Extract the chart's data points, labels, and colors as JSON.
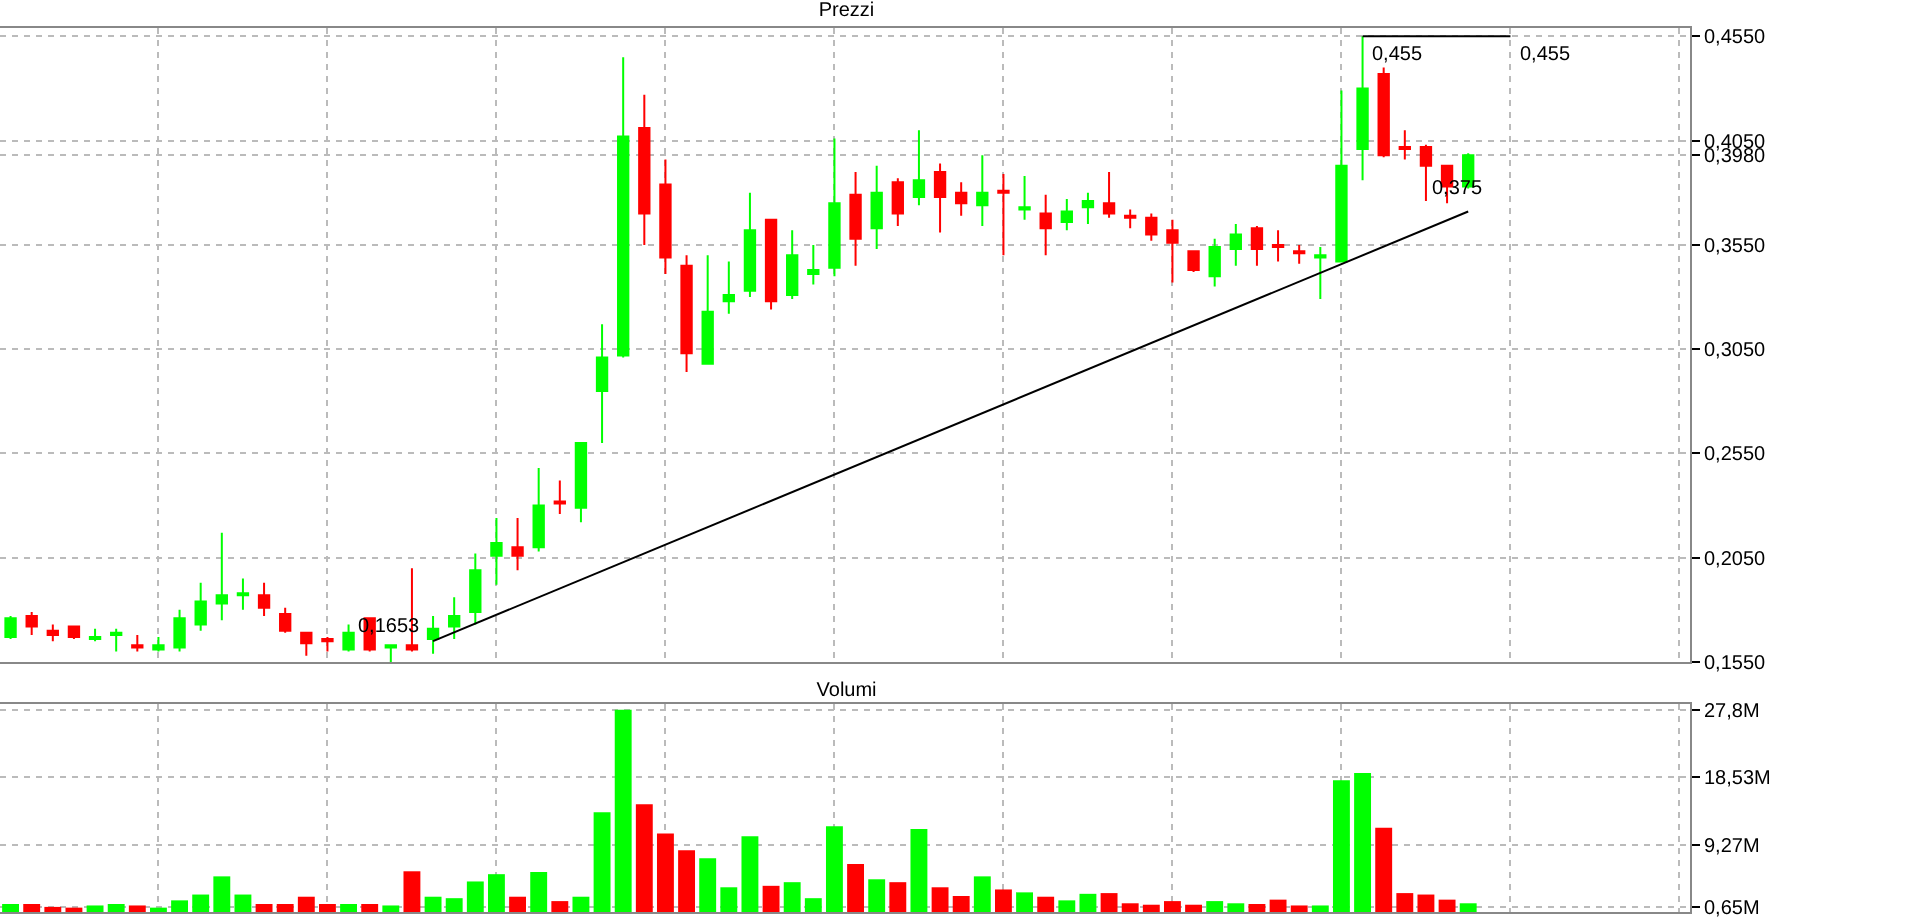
{
  "chart_data": [
    {
      "type": "candlestick",
      "title": "Prezzi",
      "categories": [
        null,
        null,
        null,
        null,
        null,
        null,
        null,
        null,
        null,
        null,
        null,
        null,
        null,
        null,
        null,
        null,
        null,
        null,
        null,
        null,
        null,
        null,
        null,
        null,
        null,
        null,
        null,
        null,
        null,
        null,
        null,
        null,
        null,
        null,
        null,
        null,
        null,
        null,
        null,
        null,
        null,
        null,
        null,
        null,
        null,
        null,
        null,
        null,
        null,
        null,
        null,
        null,
        null,
        null,
        null,
        null,
        null,
        null,
        null,
        null,
        null,
        null,
        null,
        null,
        null,
        null,
        null,
        null,
        null,
        null,
        null,
        null,
        null,
        null,
        null,
        null,
        null,
        null,
        null,
        null
      ],
      "ohlc": [
        [
          0.167,
          0.177,
          0.166,
          0.176
        ],
        [
          0.177,
          0.179,
          0.168,
          0.172
        ],
        [
          0.17,
          0.173,
          0.165,
          0.168
        ],
        [
          0.172,
          0.172,
          0.166,
          0.167
        ],
        [
          0.166,
          0.171,
          0.165,
          0.167
        ],
        [
          0.168,
          0.171,
          0.16,
          0.169
        ],
        [
          0.163,
          0.168,
          0.16,
          0.162
        ],
        [
          0.161,
          0.167,
          0.16,
          0.163
        ],
        [
          0.162,
          0.18,
          0.16,
          0.176
        ],
        [
          0.173,
          0.193,
          0.17,
          0.184
        ],
        [
          0.183,
          0.217,
          0.175,
          0.187
        ],
        [
          0.187,
          0.195,
          0.18,
          0.188
        ],
        [
          0.187,
          0.193,
          0.177,
          0.181
        ],
        [
          0.178,
          0.181,
          0.169,
          0.17
        ],
        [
          0.169,
          0.169,
          0.158,
          0.164
        ],
        [
          0.166,
          0.167,
          0.16,
          0.165
        ],
        [
          0.161,
          0.173,
          0.16,
          0.169
        ],
        [
          0.176,
          0.176,
          0.16,
          0.161
        ],
        [
          0.162,
          0.163,
          0.155,
          0.163
        ],
        [
          0.163,
          0.2,
          0.16,
          0.161
        ],
        [
          0.166,
          0.177,
          0.159,
          0.171
        ],
        [
          0.172,
          0.186,
          0.166,
          0.177
        ],
        [
          0.179,
          0.207,
          0.173,
          0.199
        ],
        [
          0.206,
          0.224,
          0.192,
          0.212
        ],
        [
          0.21,
          0.224,
          0.199,
          0.206
        ],
        [
          0.21,
          0.248,
          0.208,
          0.23
        ],
        [
          0.232,
          0.242,
          0.226,
          0.231
        ],
        [
          0.229,
          0.26,
          0.222,
          0.26
        ],
        [
          0.285,
          0.317,
          0.26,
          0.301
        ],
        [
          0.302,
          0.445,
          0.301,
          0.407
        ],
        [
          0.411,
          0.427,
          0.355,
          0.37
        ],
        [
          0.384,
          0.396,
          0.341,
          0.349
        ],
        [
          0.345,
          0.35,
          0.294,
          0.303
        ],
        [
          0.298,
          0.35,
          0.298,
          0.323
        ],
        [
          0.328,
          0.347,
          0.322,
          0.331
        ],
        [
          0.333,
          0.38,
          0.33,
          0.362
        ],
        [
          0.367,
          0.367,
          0.324,
          0.328
        ],
        [
          0.331,
          0.362,
          0.329,
          0.35
        ],
        [
          0.341,
          0.355,
          0.336,
          0.343
        ],
        [
          0.344,
          0.406,
          0.34,
          0.375
        ],
        [
          0.379,
          0.39,
          0.345,
          0.358
        ],
        [
          0.363,
          0.393,
          0.353,
          0.38
        ],
        [
          0.385,
          0.387,
          0.364,
          0.37
        ],
        [
          0.378,
          0.41,
          0.374,
          0.386
        ],
        [
          0.39,
          0.394,
          0.361,
          0.378
        ],
        [
          0.38,
          0.385,
          0.369,
          0.375
        ],
        [
          0.374,
          0.398,
          0.364,
          0.38
        ],
        [
          0.381,
          0.389,
          0.35,
          0.38
        ],
        [
          0.372,
          0.388,
          0.367,
          0.373
        ],
        [
          0.37,
          0.379,
          0.35,
          0.363
        ],
        [
          0.366,
          0.377,
          0.362,
          0.371
        ],
        [
          0.373,
          0.38,
          0.365,
          0.376
        ],
        [
          0.375,
          0.39,
          0.368,
          0.37
        ],
        [
          0.369,
          0.372,
          0.363,
          0.368
        ],
        [
          0.368,
          0.37,
          0.357,
          0.36
        ],
        [
          0.362,
          0.367,
          0.337,
          0.356
        ],
        [
          0.352,
          0.352,
          0.342,
          0.343
        ],
        [
          0.34,
          0.358,
          0.335,
          0.354
        ],
        [
          0.353,
          0.365,
          0.345,
          0.36
        ],
        [
          0.363,
          0.364,
          0.345,
          0.353
        ],
        [
          0.355,
          0.362,
          0.347,
          0.354
        ],
        [
          0.352,
          0.355,
          0.346,
          0.351
        ],
        [
          0.349,
          0.354,
          0.329,
          0.35
        ],
        [
          0.347,
          0.429,
          0.347,
          0.393
        ],
        [
          0.401,
          0.455,
          0.386,
          0.43
        ],
        [
          0.437,
          0.44,
          0.397,
          0.398
        ],
        [
          0.402,
          0.41,
          0.396,
          0.401
        ],
        [
          0.402,
          0.403,
          0.376,
          0.393
        ],
        [
          0.393,
          0.393,
          0.375,
          0.383
        ],
        [
          0.383,
          0.399,
          0.382,
          0.398
        ],
        null,
        null,
        null,
        null,
        null,
        null,
        null,
        null,
        null,
        null
      ],
      "colors": [
        "#00ff00",
        "#ff0000",
        "#ff0000",
        "#ff0000",
        "#00ff00",
        "#00ff00",
        "#ff0000",
        "#00ff00",
        "#00ff00",
        "#00ff00",
        "#00ff00",
        "#00ff00",
        "#ff0000",
        "#ff0000",
        "#ff0000",
        "#ff0000",
        "#00ff00",
        "#ff0000",
        "#00ff00",
        "#ff0000",
        "#00ff00",
        "#00ff00",
        "#00ff00",
        "#00ff00",
        "#ff0000",
        "#00ff00",
        "#ff0000",
        "#00ff00",
        "#00ff00",
        "#00ff00",
        "#ff0000",
        "#ff0000",
        "#ff0000",
        "#00ff00",
        "#00ff00",
        "#00ff00",
        "#ff0000",
        "#00ff00",
        "#00ff00",
        "#00ff00",
        "#ff0000",
        "#00ff00",
        "#ff0000",
        "#00ff00",
        "#ff0000",
        "#ff0000",
        "#00ff00",
        "#ff0000",
        "#00ff00",
        "#ff0000",
        "#00ff00",
        "#00ff00",
        "#ff0000",
        "#ff0000",
        "#ff0000",
        "#ff0000",
        "#ff0000",
        "#00ff00",
        "#00ff00",
        "#ff0000",
        "#ff0000",
        "#ff0000",
        "#00ff00",
        "#00ff00",
        "#00ff00",
        "#ff0000",
        "#ff0000",
        "#ff0000",
        "#ff0000",
        "#00ff00",
        null,
        null,
        null,
        null,
        null,
        null,
        null,
        null,
        null,
        null
      ],
      "series": [
        {
          "type": "line",
          "color": "#000000",
          "values": [
            null,
            null,
            null,
            null,
            null,
            null,
            null,
            null,
            null,
            null,
            null,
            null,
            null,
            null,
            null,
            null,
            null,
            null,
            null,
            null,
            0.165,
            null,
            null,
            null,
            null,
            null,
            null,
            null,
            null,
            null,
            null,
            null,
            null,
            null,
            null,
            null,
            null,
            null,
            null,
            null,
            null,
            null,
            null,
            null,
            null,
            null,
            null,
            null,
            null,
            null,
            null,
            null,
            null,
            null,
            null,
            null,
            null,
            null,
            null,
            null,
            null,
            null,
            null,
            null,
            null,
            null,
            null,
            null,
            null,
            0.371,
            null,
            null,
            null,
            null,
            null,
            null,
            null,
            null,
            null,
            null
          ]
        }
      ],
      "ylim": [
        0.155,
        0.459
      ],
      "yticks": [
        {
          "value": 0.455,
          "label": "0,4550"
        },
        {
          "value": 0.405,
          "label": "0,4050"
        },
        {
          "value": 0.398,
          "label": "0,3980"
        },
        {
          "value": 0.355,
          "label": "0,3550"
        },
        {
          "value": 0.305,
          "label": "0,3050"
        },
        {
          "value": 0.255,
          "label": "0,2550"
        },
        {
          "value": 0.205,
          "label": "0,2050"
        },
        {
          "value": 0.155,
          "label": "0,1550"
        }
      ],
      "grid": true,
      "tick_labels": "y",
      "ref_lines": [
        {
          "axis": "y",
          "value": 0.455,
          "label": "0,455",
          "color": "#000000"
        }
      ],
      "annotations": [
        {
          "text": "0,455",
          "y": 0.455
        },
        "0,1653",
        "0,375"
      ]
    },
    {
      "type": "bar",
      "title": "Volumi",
      "categories": [
        null,
        null,
        null,
        null,
        null,
        null,
        null,
        null,
        null,
        null,
        null,
        null,
        null,
        null,
        null,
        null,
        null,
        null,
        null,
        null,
        null,
        null,
        null,
        null,
        null,
        null,
        null,
        null,
        null,
        null,
        null,
        null,
        null,
        null,
        null,
        null,
        null,
        null,
        null,
        null,
        null,
        null,
        null,
        null,
        null,
        null,
        null,
        null,
        null,
        null,
        null,
        null,
        null,
        null,
        null,
        null,
        null,
        null,
        null,
        null,
        null,
        null,
        null,
        null,
        null,
        null,
        null,
        null,
        null,
        null,
        null,
        null,
        null,
        null,
        null,
        null,
        null,
        null,
        null,
        null
      ],
      "values": [
        1.1,
        1.1,
        0.7,
        0.6,
        0.9,
        1.1,
        0.9,
        0.6,
        1.6,
        2.4,
        4.9,
        2.4,
        1.1,
        1.1,
        2.1,
        1.1,
        1.1,
        1.1,
        0.9,
        5.6,
        2.1,
        1.9,
        4.2,
        5.2,
        2.1,
        5.5,
        1.5,
        2.1,
        13.7,
        27.8,
        14.8,
        10.8,
        8.5,
        7.4,
        3.4,
        10.4,
        3.6,
        4.1,
        1.9,
        11.8,
        6.6,
        4.5,
        4.1,
        11.4,
        3.4,
        2.2,
        4.9,
        3.1,
        2.7,
        2.1,
        1.6,
        2.5,
        2.6,
        1.2,
        1.0,
        1.5,
        1.0,
        1.5,
        1.2,
        1.1,
        1.7,
        0.9,
        0.9,
        18.1,
        19.1,
        11.6,
        2.6,
        2.4,
        1.7,
        1.2,
        null,
        null,
        null,
        null,
        null,
        null,
        null,
        null,
        null,
        null
      ],
      "colors": [
        "#00ff00",
        "#ff0000",
        "#ff0000",
        "#ff0000",
        "#00ff00",
        "#00ff00",
        "#ff0000",
        "#00ff00",
        "#00ff00",
        "#00ff00",
        "#00ff00",
        "#00ff00",
        "#ff0000",
        "#ff0000",
        "#ff0000",
        "#ff0000",
        "#00ff00",
        "#ff0000",
        "#00ff00",
        "#ff0000",
        "#00ff00",
        "#00ff00",
        "#00ff00",
        "#00ff00",
        "#ff0000",
        "#00ff00",
        "#ff0000",
        "#00ff00",
        "#00ff00",
        "#00ff00",
        "#ff0000",
        "#ff0000",
        "#ff0000",
        "#00ff00",
        "#00ff00",
        "#00ff00",
        "#ff0000",
        "#00ff00",
        "#00ff00",
        "#00ff00",
        "#ff0000",
        "#00ff00",
        "#ff0000",
        "#00ff00",
        "#ff0000",
        "#ff0000",
        "#00ff00",
        "#ff0000",
        "#00ff00",
        "#ff0000",
        "#00ff00",
        "#00ff00",
        "#ff0000",
        "#ff0000",
        "#ff0000",
        "#ff0000",
        "#ff0000",
        "#00ff00",
        "#00ff00",
        "#ff0000",
        "#ff0000",
        "#ff0000",
        "#00ff00",
        "#00ff00",
        "#00ff00",
        "#ff0000",
        "#ff0000",
        "#ff0000",
        "#ff0000",
        "#00ff00",
        null,
        null,
        null,
        null,
        null,
        null,
        null,
        null,
        null,
        null
      ],
      "ylim": [
        0,
        28.6
      ],
      "yticks": [
        {
          "value": 27.8,
          "label": "27,8M"
        },
        {
          "value": 18.53,
          "label": "18,53M"
        },
        {
          "value": 9.27,
          "label": "9,27M"
        },
        {
          "value": 0.65,
          "label": "0,65M"
        }
      ],
      "grid": true,
      "tick_labels": "y"
    }
  ]
}
